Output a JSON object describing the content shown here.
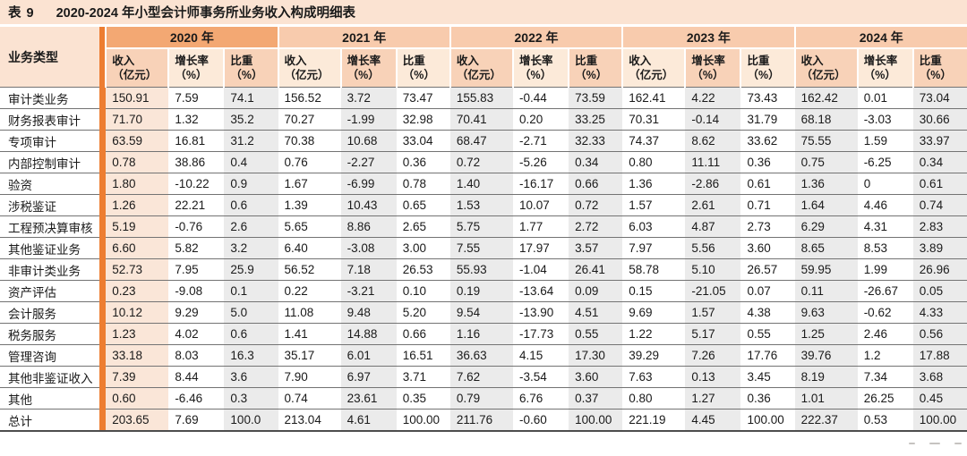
{
  "title": {
    "tag": "表 9",
    "text": "2020-2024 年小型会计师事务所业务收入构成明细表"
  },
  "table": {
    "corner_header": "业务类型",
    "year_headers": [
      "2020 年",
      "2021 年",
      "2022 年",
      "2023 年",
      "2024 年"
    ],
    "metric_headers": [
      {
        "line1": "收入",
        "line2": "（亿元）"
      },
      {
        "line1": "增长率",
        "line2": "（%）"
      },
      {
        "line1": "比重",
        "line2": "（%）"
      }
    ],
    "rows": [
      {
        "label": "审计类业务",
        "values": [
          "150.91",
          "7.59",
          "74.1",
          "156.52",
          "3.72",
          "73.47",
          "155.83",
          "-0.44",
          "73.59",
          "162.41",
          "4.22",
          "73.43",
          "162.42",
          "0.01",
          "73.04"
        ]
      },
      {
        "label": "财务报表审计",
        "values": [
          "71.70",
          "1.32",
          "35.2",
          "70.27",
          "-1.99",
          "32.98",
          "70.41",
          "0.20",
          "33.25",
          "70.31",
          "-0.14",
          "31.79",
          "68.18",
          "-3.03",
          "30.66"
        ]
      },
      {
        "label": "专项审计",
        "values": [
          "63.59",
          "16.81",
          "31.2",
          "70.38",
          "10.68",
          "33.04",
          "68.47",
          "-2.71",
          "32.33",
          "74.37",
          "8.62",
          "33.62",
          "75.55",
          "1.59",
          "33.97"
        ]
      },
      {
        "label": "内部控制审计",
        "values": [
          "0.78",
          "38.86",
          "0.4",
          "0.76",
          "-2.27",
          "0.36",
          "0.72",
          "-5.26",
          "0.34",
          "0.80",
          "11.11",
          "0.36",
          "0.75",
          "-6.25",
          "0.34"
        ]
      },
      {
        "label": "验资",
        "values": [
          "1.80",
          "-10.22",
          "0.9",
          "1.67",
          "-6.99",
          "0.78",
          "1.40",
          "-16.17",
          "0.66",
          "1.36",
          "-2.86",
          "0.61",
          "1.36",
          "0",
          "0.61"
        ]
      },
      {
        "label": "涉税鉴证",
        "values": [
          "1.26",
          "22.21",
          "0.6",
          "1.39",
          "10.43",
          "0.65",
          "1.53",
          "10.07",
          "0.72",
          "1.57",
          "2.61",
          "0.71",
          "1.64",
          "4.46",
          "0.74"
        ]
      },
      {
        "label": "工程预决算审核",
        "values": [
          "5.19",
          "-0.76",
          "2.6",
          "5.65",
          "8.86",
          "2.65",
          "5.75",
          "1.77",
          "2.72",
          "6.03",
          "4.87",
          "2.73",
          "6.29",
          "4.31",
          "2.83"
        ]
      },
      {
        "label": "其他鉴证业务",
        "values": [
          "6.60",
          "5.82",
          "3.2",
          "6.40",
          "-3.08",
          "3.00",
          "7.55",
          "17.97",
          "3.57",
          "7.97",
          "5.56",
          "3.60",
          "8.65",
          "8.53",
          "3.89"
        ]
      },
      {
        "label": "非审计类业务",
        "values": [
          "52.73",
          "7.95",
          "25.9",
          "56.52",
          "7.18",
          "26.53",
          "55.93",
          "-1.04",
          "26.41",
          "58.78",
          "5.10",
          "26.57",
          "59.95",
          "1.99",
          "26.96"
        ]
      },
      {
        "label": "资产评估",
        "values": [
          "0.23",
          "-9.08",
          "0.1",
          "0.22",
          "-3.21",
          "0.10",
          "0.19",
          "-13.64",
          "0.09",
          "0.15",
          "-21.05",
          "0.07",
          "0.11",
          "-26.67",
          "0.05"
        ]
      },
      {
        "label": "会计服务",
        "values": [
          "10.12",
          "9.29",
          "5.0",
          "11.08",
          "9.48",
          "5.20",
          "9.54",
          "-13.90",
          "4.51",
          "9.69",
          "1.57",
          "4.38",
          "9.63",
          "-0.62",
          "4.33"
        ]
      },
      {
        "label": "税务服务",
        "values": [
          "1.23",
          "4.02",
          "0.6",
          "1.41",
          "14.88",
          "0.66",
          "1.16",
          "-17.73",
          "0.55",
          "1.22",
          "5.17",
          "0.55",
          "1.25",
          "2.46",
          "0.56"
        ]
      },
      {
        "label": "管理咨询",
        "values": [
          "33.18",
          "8.03",
          "16.3",
          "35.17",
          "6.01",
          "16.51",
          "36.63",
          "4.15",
          "17.30",
          "39.29",
          "7.26",
          "17.76",
          "39.76",
          "1.2",
          "17.88"
        ]
      },
      {
        "label": "其他非鉴证收入",
        "values": [
          "7.39",
          "8.44",
          "3.6",
          "7.90",
          "6.97",
          "3.71",
          "7.62",
          "-3.54",
          "3.60",
          "7.63",
          "0.13",
          "3.45",
          "8.19",
          "7.34",
          "3.68"
        ]
      },
      {
        "label": "其他",
        "values": [
          "0.60",
          "-6.46",
          "0.3",
          "0.74",
          "23.61",
          "0.35",
          "0.79",
          "6.76",
          "0.37",
          "0.80",
          "1.27",
          "0.36",
          "1.01",
          "26.25",
          "0.45"
        ]
      },
      {
        "label": "总计",
        "values": [
          "203.65",
          "7.69",
          "100.0",
          "213.04",
          "4.61",
          "100.00",
          "211.76",
          "-0.60",
          "100.00",
          "221.19",
          "4.45",
          "100.00",
          "222.37",
          "0.53",
          "100.00"
        ]
      }
    ]
  },
  "colors": {
    "accent_stripe": "#ed7d31",
    "year_band_2020": "#f3a873",
    "year_band_other": "#f8cbad",
    "subheader_dark": "#f8d2b8",
    "subheader_light": "#fcead9",
    "column_peach": "#fae6d8",
    "column_gray": "#ebebeb",
    "title_bg": "#fbe3d2",
    "row_line": "#737373",
    "bottom_border": "#4d4d4d"
  }
}
